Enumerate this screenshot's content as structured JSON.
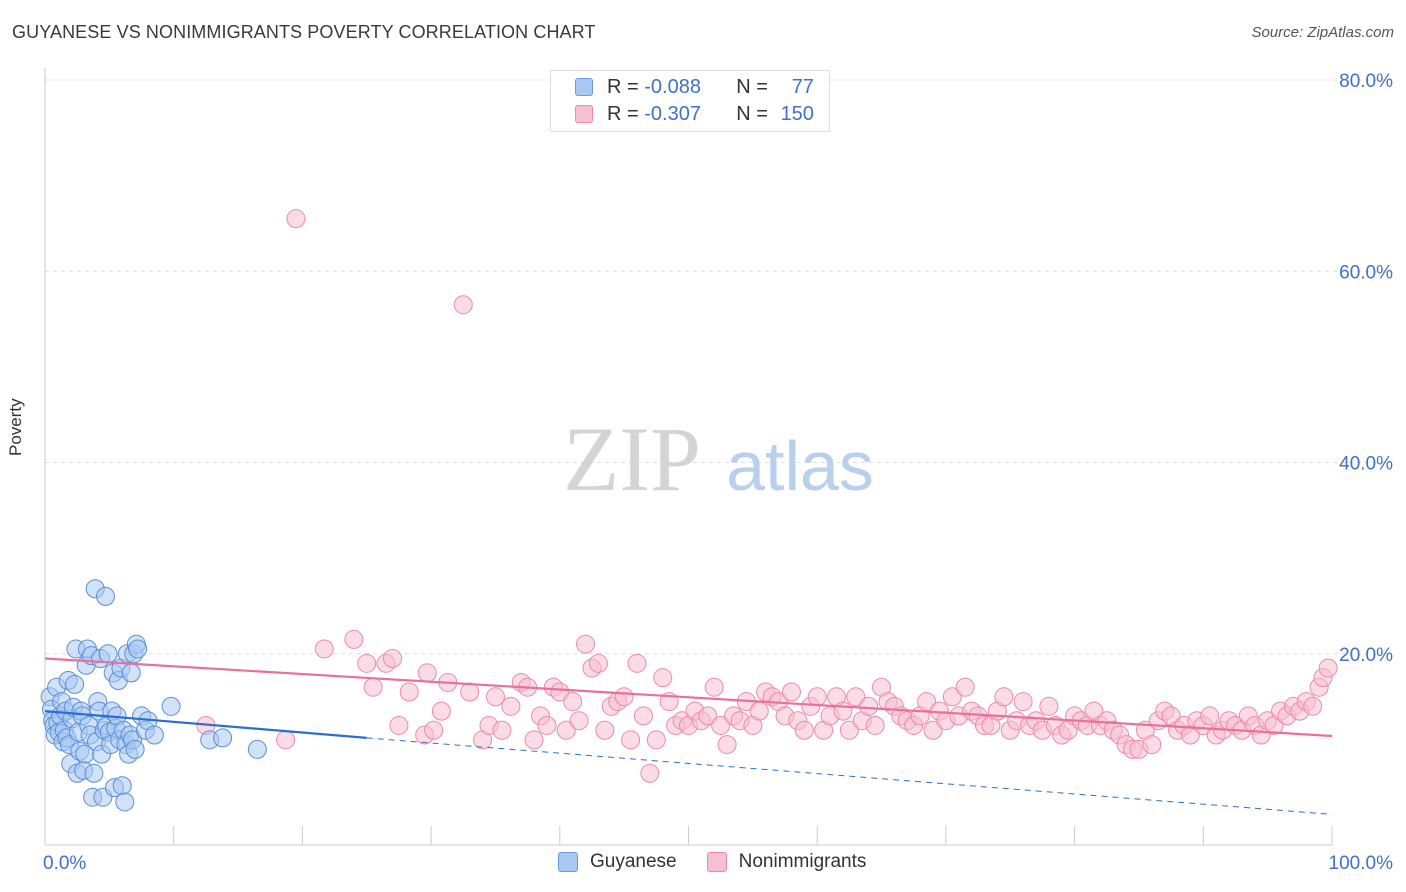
{
  "title": "GUYANESE VS NONIMMIGRANTS POVERTY CORRELATION CHART",
  "source": "Source: ZipAtlas.com",
  "watermark": {
    "zip": "ZIP",
    "atlas": "atlas"
  },
  "legend": {
    "r_label": "R =",
    "n_label": "N =",
    "rows": [
      {
        "r": "-0.088",
        "n": "77",
        "color": "#a9c9f3",
        "stroke": "#6a9be0"
      },
      {
        "r": "-0.307",
        "n": "150",
        "color": "#f8bfd0",
        "stroke": "#ec8aaa"
      }
    ]
  },
  "series_labels": [
    "Guyanese",
    "Nonimmigrants"
  ],
  "colors": {
    "blue_fill": "#a9c9f3",
    "blue_stroke": "#5b8fd6",
    "blue_line": "#2a6fce",
    "pink_fill": "#f8bfd0",
    "pink_stroke": "#ec8aaa",
    "pink_line": "#e8709a",
    "axis_text": "#3f72c5"
  },
  "chart_data": {
    "type": "scatter",
    "title": "GUYANESE VS NONIMMIGRANTS POVERTY CORRELATION CHART",
    "xlabel": "",
    "ylabel": "Poverty",
    "xlim": [
      0,
      100
    ],
    "ylim": [
      0,
      80
    ],
    "x_tick_labels": [
      "0.0%",
      "100.0%"
    ],
    "y_ticks": [
      20,
      40,
      60,
      80
    ],
    "y_tick_labels": [
      "20.0%",
      "40.0%",
      "60.0%",
      "80.0%"
    ],
    "series": [
      {
        "name": "Guyanese",
        "r": -0.088,
        "n": 77,
        "points": [
          [
            0.4,
            15.5
          ],
          [
            0.5,
            14.2
          ],
          [
            0.6,
            13.0
          ],
          [
            0.7,
            12.5
          ],
          [
            0.8,
            11.5
          ],
          [
            0.9,
            16.5
          ],
          [
            1.0,
            12.8
          ],
          [
            1.1,
            11.8
          ],
          [
            1.2,
            13.5
          ],
          [
            1.3,
            15.0
          ],
          [
            1.4,
            10.8
          ],
          [
            1.5,
            12.0
          ],
          [
            1.6,
            14.0
          ],
          [
            1.7,
            11.2
          ],
          [
            1.8,
            17.2
          ],
          [
            1.9,
            10.5
          ],
          [
            2.0,
            8.5
          ],
          [
            2.1,
            13.2
          ],
          [
            2.2,
            14.4
          ],
          [
            2.3,
            16.8
          ],
          [
            2.4,
            20.5
          ],
          [
            2.5,
            7.5
          ],
          [
            2.6,
            11.8
          ],
          [
            2.7,
            9.8
          ],
          [
            2.8,
            14.0
          ],
          [
            2.9,
            13.5
          ],
          [
            3.0,
            7.8
          ],
          [
            3.1,
            9.5
          ],
          [
            3.2,
            18.8
          ],
          [
            3.3,
            20.5
          ],
          [
            3.4,
            12.5
          ],
          [
            3.5,
            11.5
          ],
          [
            3.6,
            19.8
          ],
          [
            3.7,
            5.0
          ],
          [
            3.8,
            7.5
          ],
          [
            3.9,
            26.8
          ],
          [
            4.0,
            10.8
          ],
          [
            4.1,
            15.0
          ],
          [
            4.2,
            14.0
          ],
          [
            4.3,
            19.5
          ],
          [
            4.4,
            9.5
          ],
          [
            4.5,
            5.0
          ],
          [
            4.6,
            12.0
          ],
          [
            4.7,
            26.0
          ],
          [
            4.8,
            12.5
          ],
          [
            4.9,
            20.0
          ],
          [
            5.0,
            11.8
          ],
          [
            5.1,
            10.5
          ],
          [
            5.2,
            14.0
          ],
          [
            5.3,
            18.0
          ],
          [
            5.4,
            6.0
          ],
          [
            5.5,
            12.2
          ],
          [
            5.6,
            13.5
          ],
          [
            5.7,
            17.2
          ],
          [
            5.8,
            11.0
          ],
          [
            5.9,
            18.5
          ],
          [
            6.0,
            6.2
          ],
          [
            6.1,
            12.0
          ],
          [
            6.2,
            4.5
          ],
          [
            6.3,
            10.5
          ],
          [
            6.4,
            20.0
          ],
          [
            6.5,
            9.5
          ],
          [
            6.6,
            11.5
          ],
          [
            6.7,
            18.0
          ],
          [
            6.8,
            11.0
          ],
          [
            6.9,
            20.0
          ],
          [
            7.0,
            10.0
          ],
          [
            7.1,
            21.0
          ],
          [
            7.2,
            20.5
          ],
          [
            7.5,
            13.5
          ],
          [
            7.8,
            12.0
          ],
          [
            8.0,
            13.0
          ],
          [
            8.5,
            11.5
          ],
          [
            9.8,
            14.5
          ],
          [
            12.8,
            11.0
          ],
          [
            13.8,
            11.2
          ],
          [
            16.5,
            10.0
          ]
        ],
        "trend_solid": [
          [
            0,
            14.0
          ],
          [
            25,
            11.2
          ]
        ],
        "trend_dashed": [
          [
            25,
            11.2
          ],
          [
            100,
            3.2
          ]
        ]
      },
      {
        "name": "Nonimmigrants",
        "r": -0.307,
        "n": 150,
        "points": [
          [
            12.5,
            12.5
          ],
          [
            18.7,
            11.0
          ],
          [
            19.5,
            65.5
          ],
          [
            21.7,
            20.5
          ],
          [
            24.0,
            21.5
          ],
          [
            25.0,
            19.0
          ],
          [
            25.5,
            16.5
          ],
          [
            26.5,
            19.0
          ],
          [
            27.0,
            19.5
          ],
          [
            27.5,
            12.5
          ],
          [
            28.3,
            16.0
          ],
          [
            29.5,
            11.5
          ],
          [
            29.7,
            18.0
          ],
          [
            30.2,
            12.0
          ],
          [
            30.8,
            14.0
          ],
          [
            31.3,
            17.0
          ],
          [
            32.5,
            56.5
          ],
          [
            33.0,
            16.0
          ],
          [
            34.0,
            11.0
          ],
          [
            34.5,
            12.5
          ],
          [
            35.0,
            15.5
          ],
          [
            35.5,
            12.0
          ],
          [
            36.2,
            14.5
          ],
          [
            37.0,
            17.0
          ],
          [
            37.5,
            16.5
          ],
          [
            38.0,
            11.0
          ],
          [
            38.5,
            13.5
          ],
          [
            39.0,
            12.5
          ],
          [
            39.5,
            16.5
          ],
          [
            40.0,
            16.0
          ],
          [
            40.5,
            12.0
          ],
          [
            41.0,
            15.0
          ],
          [
            41.5,
            13.0
          ],
          [
            42.0,
            21.0
          ],
          [
            42.5,
            18.5
          ],
          [
            43.0,
            19.0
          ],
          [
            43.5,
            12.0
          ],
          [
            44.0,
            14.5
          ],
          [
            44.5,
            15.0
          ],
          [
            45.0,
            15.5
          ],
          [
            45.5,
            11.0
          ],
          [
            46.0,
            19.0
          ],
          [
            46.5,
            13.5
          ],
          [
            47.0,
            7.5
          ],
          [
            47.5,
            11.0
          ],
          [
            48.0,
            17.5
          ],
          [
            48.5,
            15.0
          ],
          [
            49.0,
            12.5
          ],
          [
            49.5,
            13.0
          ],
          [
            50.0,
            12.5
          ],
          [
            50.5,
            14.0
          ],
          [
            51.0,
            13.0
          ],
          [
            51.5,
            13.5
          ],
          [
            52.0,
            16.5
          ],
          [
            52.5,
            12.5
          ],
          [
            53.0,
            10.5
          ],
          [
            53.5,
            13.5
          ],
          [
            54.0,
            13.0
          ],
          [
            54.5,
            15.0
          ],
          [
            55.0,
            12.5
          ],
          [
            55.5,
            14.0
          ],
          [
            56.0,
            16.0
          ],
          [
            56.5,
            15.5
          ],
          [
            57.0,
            15.0
          ],
          [
            57.5,
            13.5
          ],
          [
            58.0,
            16.0
          ],
          [
            58.5,
            13.0
          ],
          [
            59.0,
            12.0
          ],
          [
            59.5,
            14.5
          ],
          [
            60.0,
            15.5
          ],
          [
            60.5,
            12.0
          ],
          [
            61.0,
            13.5
          ],
          [
            61.5,
            15.5
          ],
          [
            62.0,
            14.0
          ],
          [
            62.5,
            12.0
          ],
          [
            63.0,
            15.5
          ],
          [
            63.5,
            13.0
          ],
          [
            64.0,
            14.5
          ],
          [
            64.5,
            12.5
          ],
          [
            65.0,
            16.5
          ],
          [
            65.5,
            15.0
          ],
          [
            66.0,
            14.5
          ],
          [
            66.5,
            13.5
          ],
          [
            67.0,
            13.0
          ],
          [
            67.5,
            12.5
          ],
          [
            68.0,
            13.5
          ],
          [
            68.5,
            15.0
          ],
          [
            69.0,
            12.0
          ],
          [
            69.5,
            14.0
          ],
          [
            70.0,
            13.0
          ],
          [
            70.5,
            15.5
          ],
          [
            71.0,
            13.5
          ],
          [
            71.5,
            16.5
          ],
          [
            72.0,
            14.0
          ],
          [
            72.5,
            13.5
          ],
          [
            73.0,
            12.5
          ],
          [
            73.5,
            12.5
          ],
          [
            74.0,
            14.0
          ],
          [
            74.5,
            15.5
          ],
          [
            75.0,
            12.0
          ],
          [
            75.5,
            13.0
          ],
          [
            76.0,
            15.0
          ],
          [
            76.5,
            12.5
          ],
          [
            77.0,
            13.0
          ],
          [
            77.5,
            12.0
          ],
          [
            78.0,
            14.5
          ],
          [
            78.5,
            12.5
          ],
          [
            79.0,
            11.5
          ],
          [
            79.5,
            12.0
          ],
          [
            80.0,
            13.5
          ],
          [
            80.5,
            13.0
          ],
          [
            81.0,
            12.5
          ],
          [
            81.5,
            14.0
          ],
          [
            82.0,
            12.5
          ],
          [
            82.5,
            13.0
          ],
          [
            83.0,
            12.0
          ],
          [
            83.5,
            11.5
          ],
          [
            84.0,
            10.5
          ],
          [
            84.5,
            10.0
          ],
          [
            85.0,
            10.0
          ],
          [
            85.5,
            12.0
          ],
          [
            86.0,
            10.5
          ],
          [
            86.5,
            13.0
          ],
          [
            87.0,
            14.0
          ],
          [
            87.5,
            13.5
          ],
          [
            88.0,
            12.0
          ],
          [
            88.5,
            12.5
          ],
          [
            89.0,
            11.5
          ],
          [
            89.5,
            13.0
          ],
          [
            90.0,
            12.5
          ],
          [
            90.5,
            13.5
          ],
          [
            91.0,
            11.5
          ],
          [
            91.5,
            12.0
          ],
          [
            92.0,
            13.0
          ],
          [
            92.5,
            12.5
          ],
          [
            93.0,
            12.0
          ],
          [
            93.5,
            13.5
          ],
          [
            94.0,
            12.5
          ],
          [
            94.5,
            11.5
          ],
          [
            95.0,
            13.0
          ],
          [
            95.5,
            12.5
          ],
          [
            96.0,
            14.0
          ],
          [
            96.5,
            13.5
          ],
          [
            97.0,
            14.5
          ],
          [
            97.5,
            14.0
          ],
          [
            98.0,
            15.0
          ],
          [
            98.5,
            14.5
          ],
          [
            99.0,
            16.5
          ],
          [
            99.3,
            17.5
          ],
          [
            99.7,
            18.5
          ]
        ],
        "trend": [
          [
            0,
            19.5
          ],
          [
            100,
            11.4
          ]
        ]
      }
    ]
  }
}
